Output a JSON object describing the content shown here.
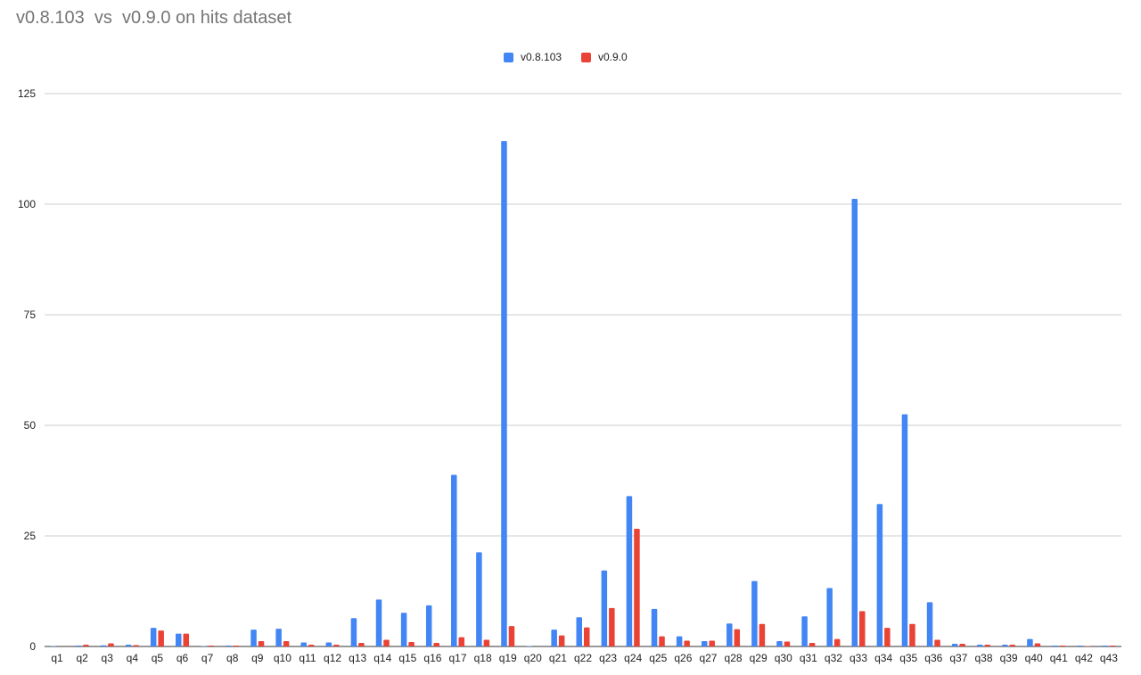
{
  "chart_data": {
    "type": "bar",
    "title": "v0.8.103  vs  v0.9.0 on hits dataset",
    "xlabel": "",
    "ylabel": "",
    "ylim": [
      0,
      125
    ],
    "yticks": [
      0,
      25,
      50,
      75,
      100,
      125
    ],
    "grid": true,
    "legend_position": "top-center",
    "categories": [
      "q1",
      "q2",
      "q3",
      "q4",
      "q5",
      "q6",
      "q7",
      "q8",
      "q9",
      "q10",
      "q11",
      "q12",
      "q13",
      "q14",
      "q15",
      "q16",
      "q17",
      "q18",
      "q19",
      "q20",
      "q21",
      "q22",
      "q23",
      "q24",
      "q25",
      "q26",
      "q27",
      "q28",
      "q29",
      "q30",
      "q31",
      "q32",
      "q33",
      "q34",
      "q35",
      "q36",
      "q37",
      "q38",
      "q39",
      "q40",
      "q41",
      "q42",
      "q43"
    ],
    "series": [
      {
        "name": "v0.8.103",
        "color": "#4285f4",
        "values": [
          0.05,
          0.2,
          0.25,
          0.4,
          4.2,
          2.9,
          0.05,
          0.2,
          3.8,
          4.0,
          0.9,
          0.9,
          6.4,
          10.6,
          7.6,
          9.3,
          38.8,
          21.3,
          114.3,
          0.05,
          3.8,
          6.6,
          17.2,
          34.0,
          8.5,
          2.3,
          1.2,
          5.2,
          14.8,
          1.2,
          6.8,
          13.2,
          101.2,
          32.2,
          52.5,
          10.0,
          0.6,
          0.4,
          0.4,
          1.7,
          0.2,
          0.2,
          0.2
        ]
      },
      {
        "name": "v0.9.0",
        "color": "#ea4335",
        "values": [
          0.0,
          0.4,
          0.7,
          0.3,
          3.6,
          2.9,
          0.2,
          0.2,
          1.2,
          1.2,
          0.4,
          0.4,
          0.8,
          1.5,
          1.0,
          0.8,
          2.1,
          1.5,
          4.6,
          0.0,
          2.5,
          4.3,
          8.7,
          26.6,
          2.3,
          1.3,
          1.3,
          3.9,
          5.1,
          1.1,
          0.8,
          1.7,
          8.0,
          4.2,
          5.1,
          1.5,
          0.6,
          0.4,
          0.4,
          0.7,
          0.2,
          0.1,
          0.2
        ]
      }
    ]
  }
}
